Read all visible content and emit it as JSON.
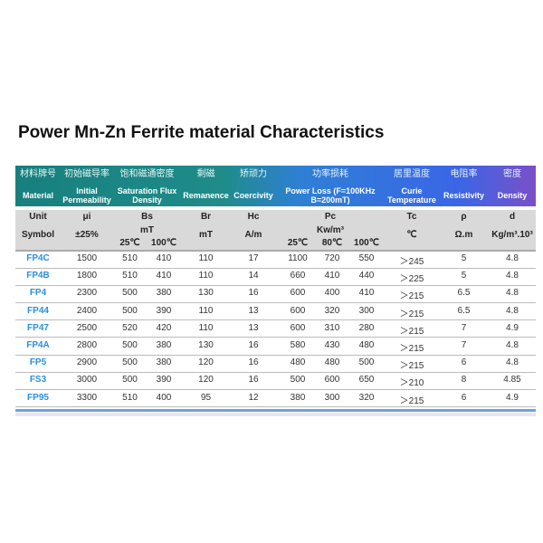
{
  "title": "Power Mn-Zn Ferrite material Characteristics",
  "header": [
    {
      "cn": "材料牌号",
      "en": "Material"
    },
    {
      "cn": "初始磁导率",
      "en": "Initial Permeability"
    },
    {
      "cn": "饱和磁通密度",
      "en": "Saturation Flux Density"
    },
    {
      "cn": "剩磁",
      "en": "Remanence"
    },
    {
      "cn": "矫顽力",
      "en": "Coercivity"
    },
    {
      "cn": "功率损耗",
      "en": "Power Loss (F=100KHz B=200mT)"
    },
    {
      "cn": "居里温度",
      "en": "Curie Temperature"
    },
    {
      "cn": "电阻率",
      "en": "Resistivity"
    },
    {
      "cn": "密度",
      "en": "Density"
    }
  ],
  "unit_row": {
    "label": "Unit",
    "ui": "μi",
    "bs": "Bs",
    "br": "Br",
    "hc": "Hc",
    "pc": "Pc",
    "tc": "Tc",
    "rho": "ρ",
    "d": "d"
  },
  "symbol_row": {
    "label": "Symbol",
    "ui": "±25%",
    "bs": "mT",
    "bs_t1": "25℃",
    "bs_t2": "100℃",
    "br": "mT",
    "hc": "A/m",
    "pc": "Kw/m³",
    "pc_t1": "25℃",
    "pc_t2": "80℃",
    "pc_t3": "100℃",
    "tc": "℃",
    "rho": "Ω.m",
    "d": "Kg/m³.10³"
  },
  "rows": [
    [
      "FP4C",
      "1500",
      "510",
      "410",
      "110",
      "17",
      "1100",
      "720",
      "550",
      "＞245",
      "5",
      "4.8"
    ],
    [
      "FP4B",
      "1800",
      "510",
      "410",
      "110",
      "14",
      "660",
      "410",
      "440",
      "＞225",
      "5",
      "4.8"
    ],
    [
      "FP4",
      "2300",
      "500",
      "380",
      "130",
      "16",
      "600",
      "400",
      "410",
      "＞215",
      "6.5",
      "4.8"
    ],
    [
      "FP44",
      "2400",
      "500",
      "390",
      "110",
      "13",
      "600",
      "320",
      "300",
      "＞215",
      "6.5",
      "4.8"
    ],
    [
      "FP47",
      "2500",
      "520",
      "420",
      "110",
      "13",
      "600",
      "310",
      "280",
      "＞215",
      "7",
      "4.9"
    ],
    [
      "FP4A",
      "2800",
      "500",
      "380",
      "130",
      "16",
      "580",
      "430",
      "480",
      "＞215",
      "7",
      "4.8"
    ],
    [
      "FP5",
      "2900",
      "500",
      "380",
      "120",
      "16",
      "480",
      "480",
      "500",
      "＞215",
      "6",
      "4.8"
    ],
    [
      "FS3",
      "3000",
      "500",
      "390",
      "120",
      "16",
      "500",
      "600",
      "650",
      "＞210",
      "8",
      "4.85"
    ],
    [
      "FP95",
      "3300",
      "510",
      "400",
      "95",
      "12",
      "380",
      "300",
      "320",
      "＞215",
      "6",
      "4.9"
    ]
  ],
  "colors": {
    "material_text": "#2b8fe0",
    "header_start": "#17807f",
    "header_end": "#7a50c8"
  }
}
